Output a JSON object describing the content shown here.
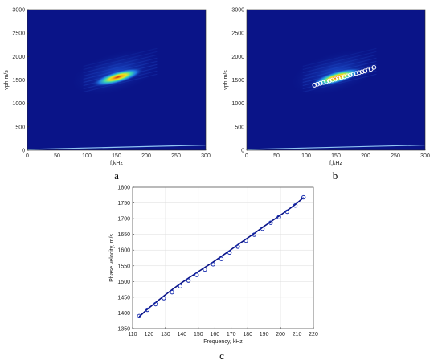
{
  "panel_letters": [
    "a",
    "b",
    "c"
  ],
  "colors": {
    "spectrum_background": "#0a1488",
    "spectrum_hot": "#c8241c",
    "spectrum_warm": "#f2e51e",
    "ridge_markers": "#ffffff",
    "fit_line": "#0a1488",
    "fit_markers": "#1a2fb0",
    "grid": "#dcdcdc"
  },
  "chart_data": [
    {
      "panel": "a",
      "type": "heatmap",
      "xlabel": "f,kHz",
      "ylabel": "vph,m/s",
      "xlim": [
        0,
        300
      ],
      "ylim": [
        0,
        3000
      ],
      "x_ticks": [
        "0",
        "50",
        "100",
        "150",
        "200",
        "250",
        "300"
      ],
      "y_ticks": [
        "0",
        "500",
        "1000",
        "1500",
        "2000",
        "2500",
        "3000"
      ],
      "grid": false,
      "colormap": "jet",
      "peak": {
        "f": 152,
        "vph": 1560
      },
      "ridge": [
        [
          105,
          1380
        ],
        [
          210,
          1760
        ]
      ]
    },
    {
      "panel": "b",
      "type": "heatmap",
      "xlabel": "f,kHz",
      "ylabel": "vph,m/s",
      "xlim": [
        0,
        300
      ],
      "ylim": [
        0,
        3000
      ],
      "x_ticks": [
        "0",
        "50",
        "100",
        "150",
        "200",
        "250",
        "300"
      ],
      "y_ticks": [
        "0",
        "500",
        "1000",
        "1500",
        "2000",
        "2500",
        "3000"
      ],
      "grid": false,
      "colormap": "jet",
      "peak": {
        "f": 152,
        "vph": 1560
      },
      "ridge": [
        [
          105,
          1380
        ],
        [
          210,
          1760
        ]
      ],
      "markers": {
        "f": [
          114,
          119,
          124,
          129,
          134,
          139,
          144,
          149,
          154,
          159,
          164,
          169,
          174,
          179,
          184,
          189,
          194,
          199,
          204,
          209,
          214
        ],
        "vph": [
          1390,
          1410,
          1428,
          1446,
          1464,
          1482,
          1500,
          1518,
          1536,
          1553,
          1570,
          1588,
          1605,
          1622,
          1640,
          1657,
          1674,
          1692,
          1710,
          1730,
          1768
        ]
      }
    },
    {
      "panel": "c",
      "type": "scatter",
      "xlabel": "Frequency, kHz",
      "ylabel": "Phase velocity, m/s",
      "xlim": [
        110,
        220
      ],
      "ylim": [
        1350,
        1800
      ],
      "x_ticks": [
        "110",
        "120",
        "130",
        "140",
        "150",
        "160",
        "170",
        "180",
        "190",
        "200",
        "210",
        "220"
      ],
      "y_ticks": [
        "1350",
        "1400",
        "1450",
        "1500",
        "1550",
        "1600",
        "1650",
        "1700",
        "1750",
        "1800"
      ],
      "grid": true,
      "series": [
        {
          "kind": "markers",
          "x": [
            114,
            119,
            124,
            129,
            134,
            139,
            144,
            149,
            154,
            159,
            164,
            169,
            174,
            179,
            184,
            189,
            194,
            199,
            204,
            209,
            214
          ],
          "y": [
            1390,
            1410,
            1428,
            1447,
            1466,
            1485,
            1503,
            1521,
            1538,
            1555,
            1572,
            1592,
            1611,
            1630,
            1649,
            1668,
            1687,
            1705,
            1722,
            1742,
            1768
          ]
        },
        {
          "kind": "line",
          "x": [
            114,
            119,
            124,
            129,
            134,
            139,
            144,
            149,
            154,
            159,
            164,
            169,
            174,
            179,
            184,
            189,
            194,
            199,
            204,
            209,
            214
          ],
          "y": [
            1388,
            1412,
            1433,
            1454,
            1474,
            1493,
            1511,
            1528,
            1545,
            1562,
            1580,
            1598,
            1617,
            1635,
            1653,
            1672,
            1690,
            1708,
            1726,
            1745,
            1767
          ]
        }
      ]
    }
  ]
}
